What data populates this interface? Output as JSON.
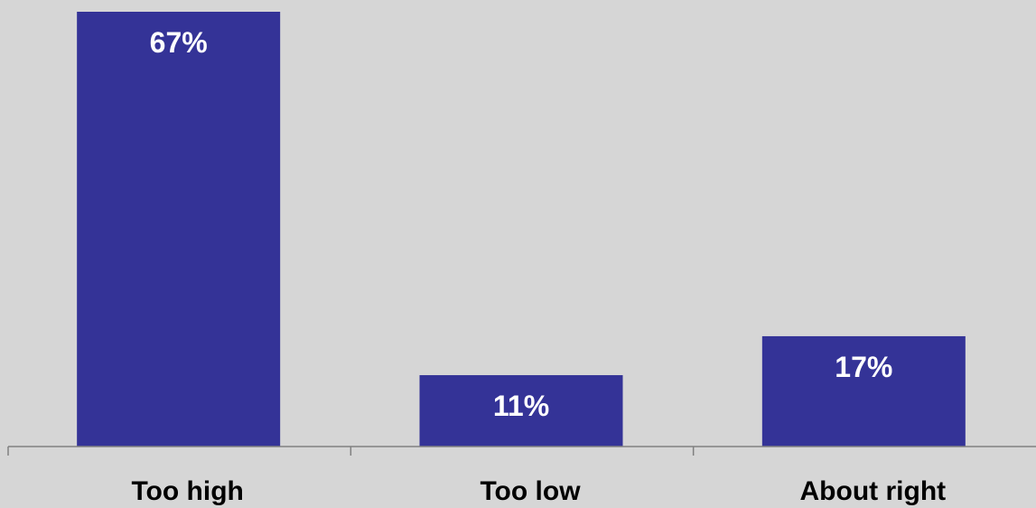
{
  "chart_data": {
    "type": "bar",
    "categories": [
      "Too high",
      "Too low",
      "About right"
    ],
    "values": [
      67,
      11,
      17
    ],
    "value_labels": [
      "67%",
      "11%",
      "17%"
    ],
    "title": "",
    "xlabel": "",
    "ylabel": "",
    "ylim": [
      0,
      67
    ],
    "grid": false,
    "legend": "none",
    "colors": {
      "bar": "#343397",
      "background": "#d6d6d6",
      "axis": "#808080",
      "value_label": "#ffffff",
      "category_label": "#000000"
    }
  }
}
